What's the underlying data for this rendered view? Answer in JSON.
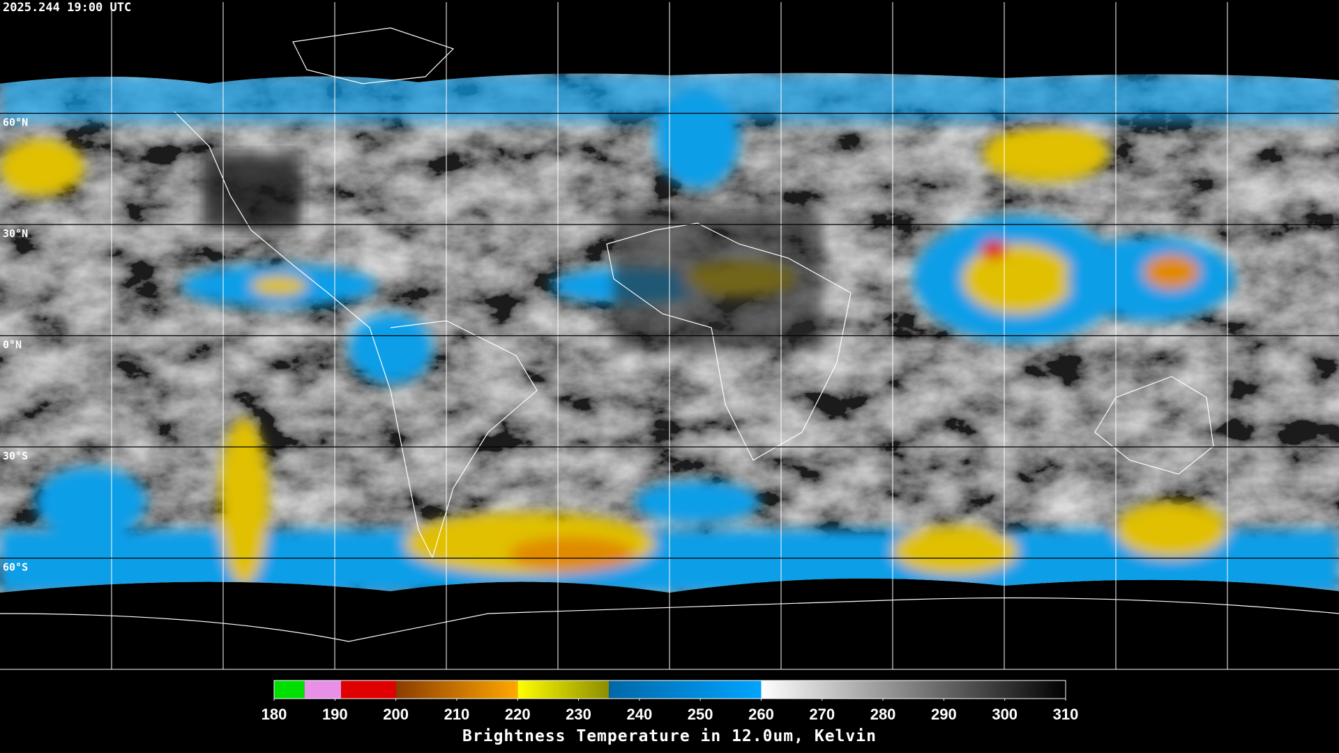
{
  "timestamp": "2025.244 19:00 UTC",
  "lat_lines": [
    {
      "value": 60,
      "label": "60°N"
    },
    {
      "value": 30,
      "label": "30°N"
    },
    {
      "value": 0,
      "label": "0°N"
    },
    {
      "value": -30,
      "label": "30°S"
    },
    {
      "value": -60,
      "label": "60°S"
    }
  ],
  "colorbar": {
    "title": "Brightness Temperature in 12.0um, Kelvin",
    "range": [
      180,
      310
    ],
    "ticks": [
      180,
      190,
      200,
      210,
      220,
      230,
      240,
      250,
      260,
      270,
      280,
      290,
      300,
      310
    ],
    "segments": [
      {
        "from": 180,
        "to": 185,
        "colors": [
          "#00e000",
          "#00e000"
        ]
      },
      {
        "from": 185,
        "to": 191,
        "colors": [
          "#e890e8",
          "#e890e8"
        ]
      },
      {
        "from": 191,
        "to": 200,
        "colors": [
          "#e00000",
          "#e00000"
        ]
      },
      {
        "from": 200,
        "to": 220,
        "colors": [
          "#8a3c00",
          "#ffa800"
        ]
      },
      {
        "from": 220,
        "to": 235,
        "colors": [
          "#ffff00",
          "#8c8c00"
        ]
      },
      {
        "from": 235,
        "to": 260,
        "colors": [
          "#0068a8",
          "#00a4ff"
        ]
      },
      {
        "from": 260,
        "to": 310,
        "colors": [
          "#ffffff",
          "#000000"
        ]
      }
    ]
  }
}
